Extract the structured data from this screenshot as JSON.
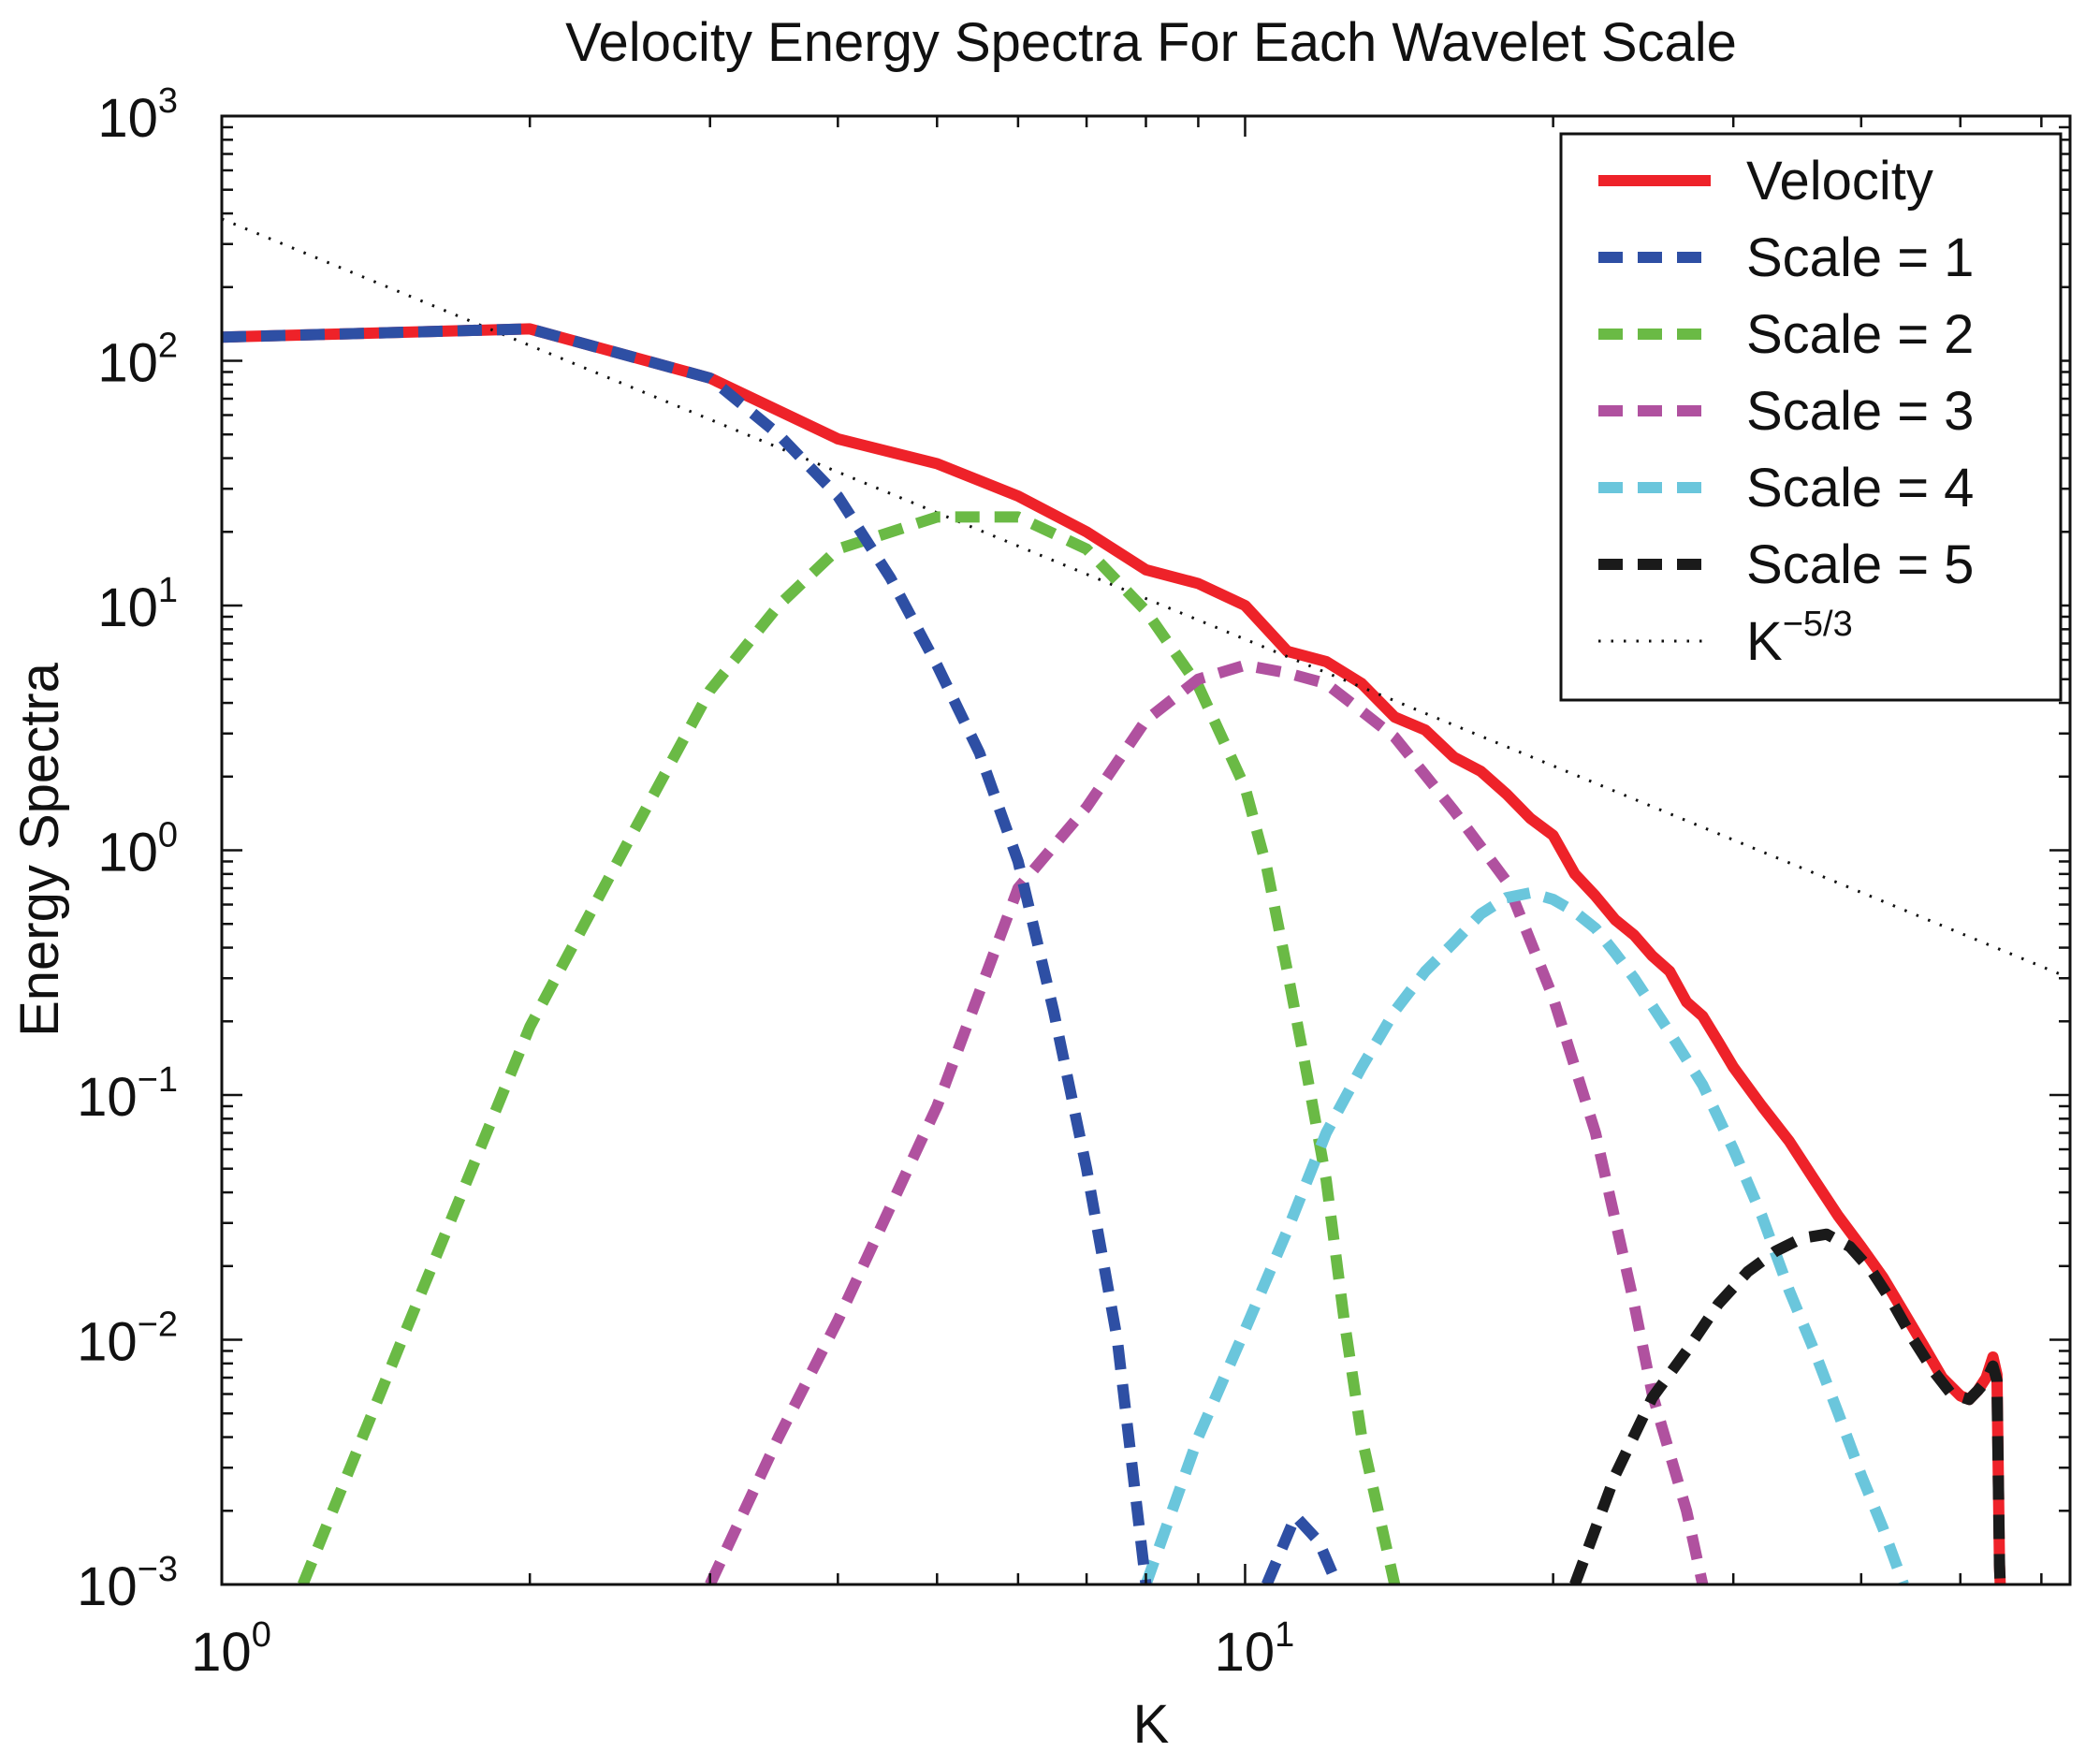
{
  "chart_data": {
    "type": "line",
    "title": "Velocity Energy Spectra For Each Wavelet Scale",
    "xlabel": "K",
    "ylabel": "Energy Spectra",
    "xscale": "log",
    "yscale": "log",
    "xlim": [
      1,
      64
    ],
    "ylim": [
      0.001,
      1000
    ],
    "grid": false,
    "legend_position": "top-right",
    "x_ticks": [
      {
        "value": 1,
        "base": "10",
        "exp": "0"
      },
      {
        "value": 10,
        "base": "10",
        "exp": "1"
      }
    ],
    "y_ticks": [
      {
        "value": 0.001,
        "base": "10",
        "exp": "−3"
      },
      {
        "value": 0.01,
        "base": "10",
        "exp": "−2"
      },
      {
        "value": 0.1,
        "base": "10",
        "exp": "−1"
      },
      {
        "value": 1,
        "base": "10",
        "exp": "0"
      },
      {
        "value": 10,
        "base": "10",
        "exp": "1"
      },
      {
        "value": 100,
        "base": "10",
        "exp": "2"
      },
      {
        "value": 1000,
        "base": "10",
        "exp": "3"
      }
    ],
    "series": [
      {
        "name": "Velocity",
        "color": "#ee2229",
        "dash": "solid",
        "points": [
          [
            1,
            125
          ],
          [
            2,
            135
          ],
          [
            3,
            85
          ],
          [
            4,
            48
          ],
          [
            5,
            38
          ],
          [
            6,
            28
          ],
          [
            7,
            20
          ],
          [
            8,
            14
          ],
          [
            9,
            12.3
          ],
          [
            10,
            10
          ],
          [
            11,
            6.5
          ],
          [
            12,
            5.9
          ],
          [
            13,
            4.8
          ],
          [
            14,
            3.5
          ],
          [
            15,
            3.1
          ],
          [
            16,
            2.4
          ],
          [
            17,
            2.1
          ],
          [
            18,
            1.7
          ],
          [
            19,
            1.35
          ],
          [
            20,
            1.15
          ],
          [
            21,
            0.8
          ],
          [
            22,
            0.65
          ],
          [
            23,
            0.52
          ],
          [
            24,
            0.45
          ],
          [
            25,
            0.37
          ],
          [
            26,
            0.32
          ],
          [
            27,
            0.24
          ],
          [
            28,
            0.21
          ],
          [
            29,
            0.165
          ],
          [
            30,
            0.13
          ],
          [
            32,
            0.09
          ],
          [
            34,
            0.065
          ],
          [
            36,
            0.045
          ],
          [
            38,
            0.032
          ],
          [
            40,
            0.024
          ],
          [
            42,
            0.018
          ],
          [
            44,
            0.013
          ],
          [
            46,
            0.0095
          ],
          [
            48,
            0.007
          ],
          [
            50,
            0.0059
          ],
          [
            51,
            0.0057
          ],
          [
            52,
            0.0062
          ],
          [
            53,
            0.007
          ],
          [
            53.8,
            0.0085
          ],
          [
            54.3,
            0.0072
          ],
          [
            54.6,
            0.0012
          ],
          [
            54.7,
            0.001
          ]
        ]
      },
      {
        "name": "Scale = 1",
        "color": "#2e4fa4",
        "dash": "dashed",
        "points": [
          [
            1,
            125
          ],
          [
            2,
            135
          ],
          [
            3,
            85
          ],
          [
            3.5,
            50
          ],
          [
            4,
            28
          ],
          [
            4.5,
            13
          ],
          [
            5,
            5.7
          ],
          [
            5.5,
            2.5
          ],
          [
            6,
            0.9
          ],
          [
            6.5,
            0.22
          ],
          [
            7,
            0.05
          ],
          [
            7.5,
            0.01
          ],
          [
            8,
            0.001
          ]
        ]
      },
      {
        "name": "",
        "color": "#2e4fa4",
        "dash": "dashed",
        "points": [
          [
            10.5,
            0.001
          ],
          [
            11.2,
            0.0019
          ],
          [
            11.8,
            0.0015
          ],
          [
            12.3,
            0.001
          ]
        ]
      },
      {
        "name": "Scale = 2",
        "color": "#6aba45",
        "dash": "dashed",
        "points": [
          [
            1.2,
            0.001
          ],
          [
            1.5,
            0.01
          ],
          [
            2,
            0.19
          ],
          [
            2.5,
            1.1
          ],
          [
            3,
            4.5
          ],
          [
            3.5,
            10
          ],
          [
            4,
            17
          ],
          [
            5,
            23
          ],
          [
            6,
            23
          ],
          [
            7,
            17
          ],
          [
            8,
            9.5
          ],
          [
            9,
            4.7
          ],
          [
            10,
            1.8
          ],
          [
            10.5,
            0.85
          ],
          [
            11,
            0.32
          ],
          [
            11.5,
            0.12
          ],
          [
            12,
            0.045
          ],
          [
            12.5,
            0.012
          ],
          [
            13,
            0.004
          ],
          [
            14,
            0.001
          ]
        ]
      },
      {
        "name": "Scale = 3",
        "color": "#b0519f",
        "dash": "dashed",
        "points": [
          [
            3,
            0.001
          ],
          [
            3.5,
            0.004
          ],
          [
            4,
            0.012
          ],
          [
            5,
            0.09
          ],
          [
            6,
            0.7
          ],
          [
            7,
            1.5
          ],
          [
            8,
            3.4
          ],
          [
            9,
            5
          ],
          [
            10,
            5.7
          ],
          [
            11,
            5.3
          ],
          [
            12,
            4.8
          ],
          [
            13,
            3.7
          ],
          [
            14,
            2.9
          ],
          [
            16,
            1.45
          ],
          [
            18,
            0.75
          ],
          [
            20,
            0.25
          ],
          [
            22,
            0.07
          ],
          [
            24,
            0.014
          ],
          [
            25,
            0.006
          ],
          [
            27,
            0.002
          ],
          [
            28,
            0.001
          ]
        ]
      },
      {
        "name": "Scale = 4",
        "color": "#6ac6dc",
        "dash": "dashed",
        "points": [
          [
            8,
            0.001
          ],
          [
            9,
            0.004
          ],
          [
            10,
            0.011
          ],
          [
            11,
            0.028
          ],
          [
            12,
            0.07
          ],
          [
            13,
            0.13
          ],
          [
            14,
            0.22
          ],
          [
            15,
            0.32
          ],
          [
            16,
            0.42
          ],
          [
            17,
            0.55
          ],
          [
            18,
            0.64
          ],
          [
            19,
            0.67
          ],
          [
            20,
            0.63
          ],
          [
            21,
            0.56
          ],
          [
            22,
            0.48
          ],
          [
            23,
            0.38
          ],
          [
            24,
            0.3
          ],
          [
            26,
            0.18
          ],
          [
            28,
            0.11
          ],
          [
            30,
            0.06
          ],
          [
            32,
            0.032
          ],
          [
            34,
            0.016
          ],
          [
            36,
            0.009
          ],
          [
            38,
            0.005
          ],
          [
            40,
            0.0028
          ],
          [
            42,
            0.0017
          ],
          [
            44,
            0.001
          ]
        ]
      },
      {
        "name": "Scale = 5",
        "color": "#1a1a1a",
        "dash": "dashed",
        "points": [
          [
            21,
            0.001
          ],
          [
            23,
            0.0028
          ],
          [
            25,
            0.0058
          ],
          [
            27,
            0.009
          ],
          [
            29,
            0.014
          ],
          [
            31,
            0.019
          ],
          [
            33,
            0.023
          ],
          [
            35,
            0.026
          ],
          [
            37,
            0.027
          ],
          [
            39,
            0.024
          ],
          [
            41,
            0.019
          ],
          [
            43,
            0.014
          ],
          [
            45,
            0.01
          ],
          [
            47,
            0.0075
          ],
          [
            49,
            0.006
          ],
          [
            51,
            0.0057
          ],
          [
            52,
            0.0062
          ],
          [
            53,
            0.0068
          ],
          [
            53.8,
            0.0078
          ],
          [
            54.3,
            0.0068
          ],
          [
            54.6,
            0.0012
          ],
          [
            54.7,
            0.001
          ]
        ]
      },
      {
        "name": "K",
        "name_sup": "−5/3",
        "color": "#111111",
        "dash": "dotted",
        "points": [
          [
            1,
            380
          ],
          [
            64,
            0.3
          ]
        ]
      }
    ]
  }
}
